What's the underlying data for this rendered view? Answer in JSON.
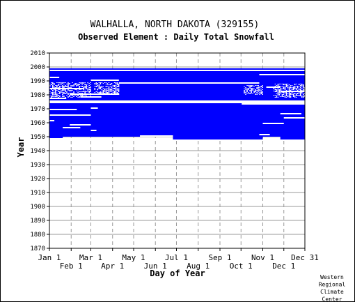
{
  "chart_data": {
    "type": "heatmap",
    "title": "WALHALLA, NORTH DAKOTA   (329155)",
    "subtitle": "Observed Element : Daily Total Snowfall",
    "xlabel": "Day of Year",
    "ylabel": "Year",
    "xlim": [
      1,
      365
    ],
    "ylim": [
      1870,
      2010
    ],
    "y_ticks": [
      1870,
      1880,
      1890,
      1900,
      1910,
      1920,
      1930,
      1940,
      1950,
      1960,
      1970,
      1980,
      1990,
      2000,
      2010
    ],
    "x_ticks": [
      {
        "label": "Jan 1",
        "day": 1,
        "row": 1
      },
      {
        "label": "Feb 1",
        "day": 32,
        "row": 2
      },
      {
        "label": "Mar 1",
        "day": 60,
        "row": 1
      },
      {
        "label": "Apr 1",
        "day": 91,
        "row": 2
      },
      {
        "label": "May 1",
        "day": 121,
        "row": 1
      },
      {
        "label": "Jun 1",
        "day": 152,
        "row": 2
      },
      {
        "label": "Jul 1",
        "day": 182,
        "row": 1
      },
      {
        "label": "Aug 1",
        "day": 213,
        "row": 2
      },
      {
        "label": "Sep 1",
        "day": 244,
        "row": 1
      },
      {
        "label": "Oct 1",
        "day": 274,
        "row": 2
      },
      {
        "label": "Nov 1",
        "day": 305,
        "row": 1
      },
      {
        "label": "Dec 1",
        "day": 335,
        "row": 2
      },
      {
        "label": "Dec 31",
        "day": 365,
        "row": 1
      }
    ],
    "grid": true,
    "data_color": "#0000ff",
    "coverage": [
      {
        "year_start": 1950,
        "year_end": 1974,
        "day_start": 1,
        "day_end": 365
      },
      {
        "year_start": 1976,
        "year_end": 1997,
        "day_start": 1,
        "day_end": 365
      },
      {
        "year_start": 1998,
        "year_end": 1999,
        "day_start": 1,
        "day_end": 365
      },
      {
        "year_start": 1949,
        "year_end": 1950,
        "day_start": 1,
        "day_end": 20
      },
      {
        "year_start": 1948,
        "year_end": 1950,
        "day_start": 177,
        "day_end": 305
      },
      {
        "year_start": 1948,
        "year_end": 1950,
        "day_start": 330,
        "day_end": 365
      }
    ],
    "gaps": [
      {
        "year_start": 1950,
        "year_end": 1951,
        "day_start": 130,
        "day_end": 177
      },
      {
        "year_start": 1951,
        "year_end": 1952,
        "day_start": 300,
        "day_end": 315
      },
      {
        "year_start": 1954,
        "year_end": 1955,
        "day_start": 60,
        "day_end": 68
      },
      {
        "year_start": 1956,
        "year_end": 1957,
        "day_start": 20,
        "day_end": 45
      },
      {
        "year_start": 1958,
        "year_end": 1959,
        "day_start": 30,
        "day_end": 60
      },
      {
        "year_start": 1959,
        "year_end": 1960,
        "day_start": 305,
        "day_end": 335
      },
      {
        "year_start": 1961,
        "year_end": 1962,
        "day_start": 1,
        "day_end": 8
      },
      {
        "year_start": 1963,
        "year_end": 1964,
        "day_start": 335,
        "day_end": 365
      },
      {
        "year_start": 1965,
        "year_end": 1966,
        "day_start": 1,
        "day_end": 60
      },
      {
        "year_start": 1966,
        "year_end": 1967,
        "day_start": 330,
        "day_end": 360
      },
      {
        "year_start": 1969,
        "year_end": 1970,
        "day_start": 1,
        "day_end": 40
      },
      {
        "year_start": 1970,
        "year_end": 1971,
        "day_start": 60,
        "day_end": 70
      },
      {
        "year_start": 1973,
        "year_end": 1974,
        "day_start": 275,
        "day_end": 365
      },
      {
        "year_start": 1977,
        "year_end": 1978,
        "day_start": 1,
        "day_end": 25
      },
      {
        "year_start": 1978,
        "year_end": 1979,
        "day_start": 45,
        "day_end": 75
      },
      {
        "year_start": 1980,
        "year_end": 1981,
        "day_start": 30,
        "day_end": 100
      },
      {
        "year_start": 1982,
        "year_end": 1983,
        "day_start": 330,
        "day_end": 365
      },
      {
        "year_start": 1984,
        "year_end": 1985,
        "day_start": 1,
        "day_end": 50
      },
      {
        "year_start": 1985,
        "year_end": 1986,
        "day_start": 310,
        "day_end": 330
      },
      {
        "year_start": 1988,
        "year_end": 1989,
        "day_start": 100,
        "day_end": 300
      },
      {
        "year_start": 1990,
        "year_end": 1991,
        "day_start": 60,
        "day_end": 100
      },
      {
        "year_start": 1992,
        "year_end": 1993,
        "day_start": 1,
        "day_end": 15
      },
      {
        "year_start": 1994,
        "year_end": 1995,
        "day_start": 300,
        "day_end": 365
      },
      {
        "year_start": 1997,
        "year_end": 1998,
        "day_start": 1,
        "day_end": 365
      }
    ],
    "sparse_regions": [
      {
        "year_start": 1978,
        "year_end": 1989,
        "day_start": 1,
        "day_end": 60
      },
      {
        "year_start": 1980,
        "year_end": 1989,
        "day_start": 65,
        "day_end": 100
      },
      {
        "year_start": 1978,
        "year_end": 1988,
        "day_start": 320,
        "day_end": 365
      },
      {
        "year_start": 1980,
        "year_end": 1987,
        "day_start": 278,
        "day_end": 305
      }
    ],
    "footer": [
      "Western",
      "Regional",
      "Climate",
      "Center"
    ]
  }
}
